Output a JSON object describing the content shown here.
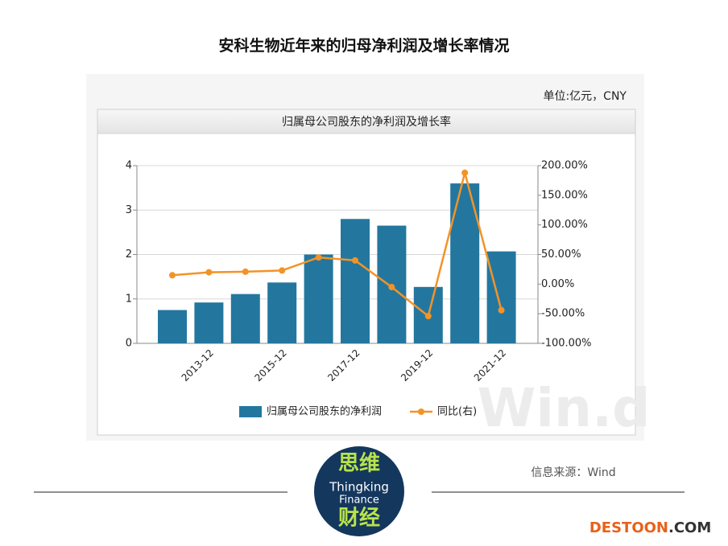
{
  "header": {
    "title": "安科生物近年来的归母净利润及增长率情况"
  },
  "chart_data": {
    "type": "bar",
    "unit": "单位:亿元，CNY",
    "title": "归属母公司股东的净利润及增长率",
    "categories": [
      null,
      "2013-12",
      null,
      "2015-12",
      null,
      "2017-12",
      null,
      "2019-12",
      null,
      "2021-12"
    ],
    "series": [
      {
        "name": "归属母公司股东的净利润",
        "type": "bar",
        "color": "#23779f",
        "values": [
          0.75,
          0.92,
          1.11,
          1.37,
          2.0,
          2.8,
          2.65,
          1.27,
          3.6,
          2.07
        ]
      },
      {
        "name": "同比(右)",
        "type": "line",
        "axis": "y2",
        "color": "#f39327",
        "values": [
          15,
          20,
          21,
          23,
          45,
          40,
          -5,
          -54,
          188,
          -44
        ]
      }
    ],
    "ylim": [
      0,
      4
    ],
    "yticks": [
      0,
      1,
      2,
      3,
      4
    ],
    "y2lim": [
      -100,
      200
    ],
    "y2ticks": [
      {
        "value": -100,
        "label": "-100.00%"
      },
      {
        "value": -50,
        "label": "-50.00%"
      },
      {
        "value": 0,
        "label": "0.00%"
      },
      {
        "value": 50,
        "label": "50.00%"
      },
      {
        "value": 100,
        "label": "100.00%"
      },
      {
        "value": 150,
        "label": "150.00%"
      },
      {
        "value": 200,
        "label": "200.00%"
      }
    ],
    "grid": true,
    "legend": "bottom"
  },
  "footer": {
    "source": "信息来源：Wind",
    "logo": [
      "思维",
      "Thingking",
      "Finance",
      "财经"
    ],
    "brand": [
      "DESTOON",
      ".COM"
    ]
  }
}
